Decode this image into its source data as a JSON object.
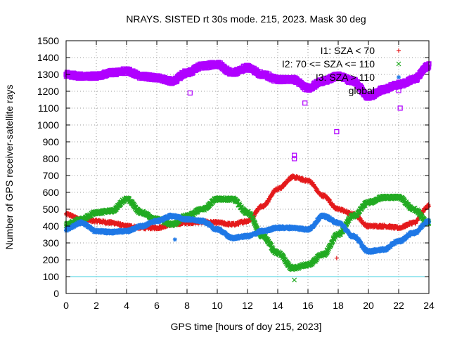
{
  "chart_data": {
    "type": "scatter",
    "title": "NRAYS. SISTED rt 30s mode. 215, 2023. Mask 30 deg",
    "xlabel": "GPS time [hours of doy 215, 2023]",
    "ylabel": "Number of GPS receiver-satellite rays",
    "xlim": [
      0,
      24
    ],
    "ylim": [
      0,
      1500
    ],
    "x_ticks": [
      "0",
      "2",
      "4",
      "6",
      "8",
      "10",
      "12",
      "14",
      "16",
      "18",
      "20",
      "22",
      "24"
    ],
    "y_ticks": [
      "0",
      "100",
      "200",
      "300",
      "400",
      "500",
      "600",
      "700",
      "800",
      "900",
      "1000",
      "1100",
      "1200",
      "1300",
      "1400",
      "1500"
    ],
    "grid": true,
    "legend_position": "top-right",
    "reference_line": {
      "y": 100,
      "color": "#40d0e0"
    },
    "series": [
      {
        "name": "I1: SZA < 70",
        "marker": "+",
        "color": "#e41a1c",
        "x": [
          0,
          1,
          2,
          3,
          4,
          5,
          6,
          7,
          8,
          9,
          10,
          11,
          12,
          13,
          14,
          15,
          16,
          17,
          18,
          19,
          20,
          21,
          22,
          23,
          24
        ],
        "y": [
          470,
          440,
          430,
          420,
          400,
          390,
          390,
          410,
          420,
          425,
          420,
          410,
          430,
          520,
          620,
          690,
          670,
          580,
          500,
          470,
          400,
          400,
          390,
          420,
          520
        ]
      },
      {
        "name": "I2: 70 <= SZA <= 110",
        "marker": "x",
        "color": "#22aa22",
        "x": [
          0,
          1,
          2,
          3,
          4,
          5,
          6,
          7,
          8,
          9,
          10,
          11,
          12,
          13,
          14,
          15,
          16,
          17,
          18,
          19,
          20,
          21,
          22,
          23,
          24
        ],
        "y": [
          410,
          440,
          480,
          490,
          560,
          480,
          440,
          410,
          460,
          500,
          560,
          560,
          480,
          340,
          240,
          150,
          170,
          230,
          350,
          460,
          540,
          570,
          570,
          500,
          420
        ]
      },
      {
        "name": "I3: SZA > 110",
        "marker": "*",
        "color": "#1f78e6",
        "x": [
          0,
          1,
          2,
          3,
          4,
          5,
          6,
          7,
          8,
          9,
          10,
          11,
          12,
          13,
          14,
          15,
          16,
          17,
          18,
          19,
          20,
          21,
          22,
          23,
          24
        ],
        "y": [
          380,
          420,
          370,
          365,
          370,
          400,
          430,
          460,
          440,
          430,
          380,
          330,
          340,
          370,
          390,
          390,
          380,
          460,
          420,
          340,
          250,
          260,
          310,
          360,
          430
        ]
      },
      {
        "name": "global",
        "marker": "square",
        "color": "#b000ff",
        "x": [
          0,
          1,
          2,
          3,
          4,
          5,
          6,
          7,
          8,
          9,
          10,
          11,
          12,
          13,
          14,
          15,
          16,
          17,
          18,
          19,
          20,
          21,
          22,
          23,
          24
        ],
        "y": [
          1300,
          1290,
          1290,
          1310,
          1320,
          1290,
          1280,
          1260,
          1310,
          1350,
          1360,
          1310,
          1340,
          1300,
          1270,
          1270,
          1220,
          1260,
          1290,
          1260,
          1170,
          1210,
          1240,
          1270,
          1350
        ]
      }
    ],
    "outliers": [
      {
        "series": "global",
        "x": 15.1,
        "y": 820
      },
      {
        "series": "global",
        "x": 15.1,
        "y": 800
      },
      {
        "series": "global",
        "x": 17.9,
        "y": 960
      },
      {
        "series": "global",
        "x": 15.8,
        "y": 1130
      },
      {
        "series": "global",
        "x": 22.1,
        "y": 1100
      },
      {
        "series": "global",
        "x": 8.2,
        "y": 1190
      },
      {
        "series": "I2: 70 <= SZA <= 110",
        "x": 15.1,
        "y": 80
      },
      {
        "series": "I1: SZA < 70",
        "x": 17.9,
        "y": 210
      },
      {
        "series": "I3: SZA > 110",
        "x": 7.2,
        "y": 320
      }
    ]
  }
}
